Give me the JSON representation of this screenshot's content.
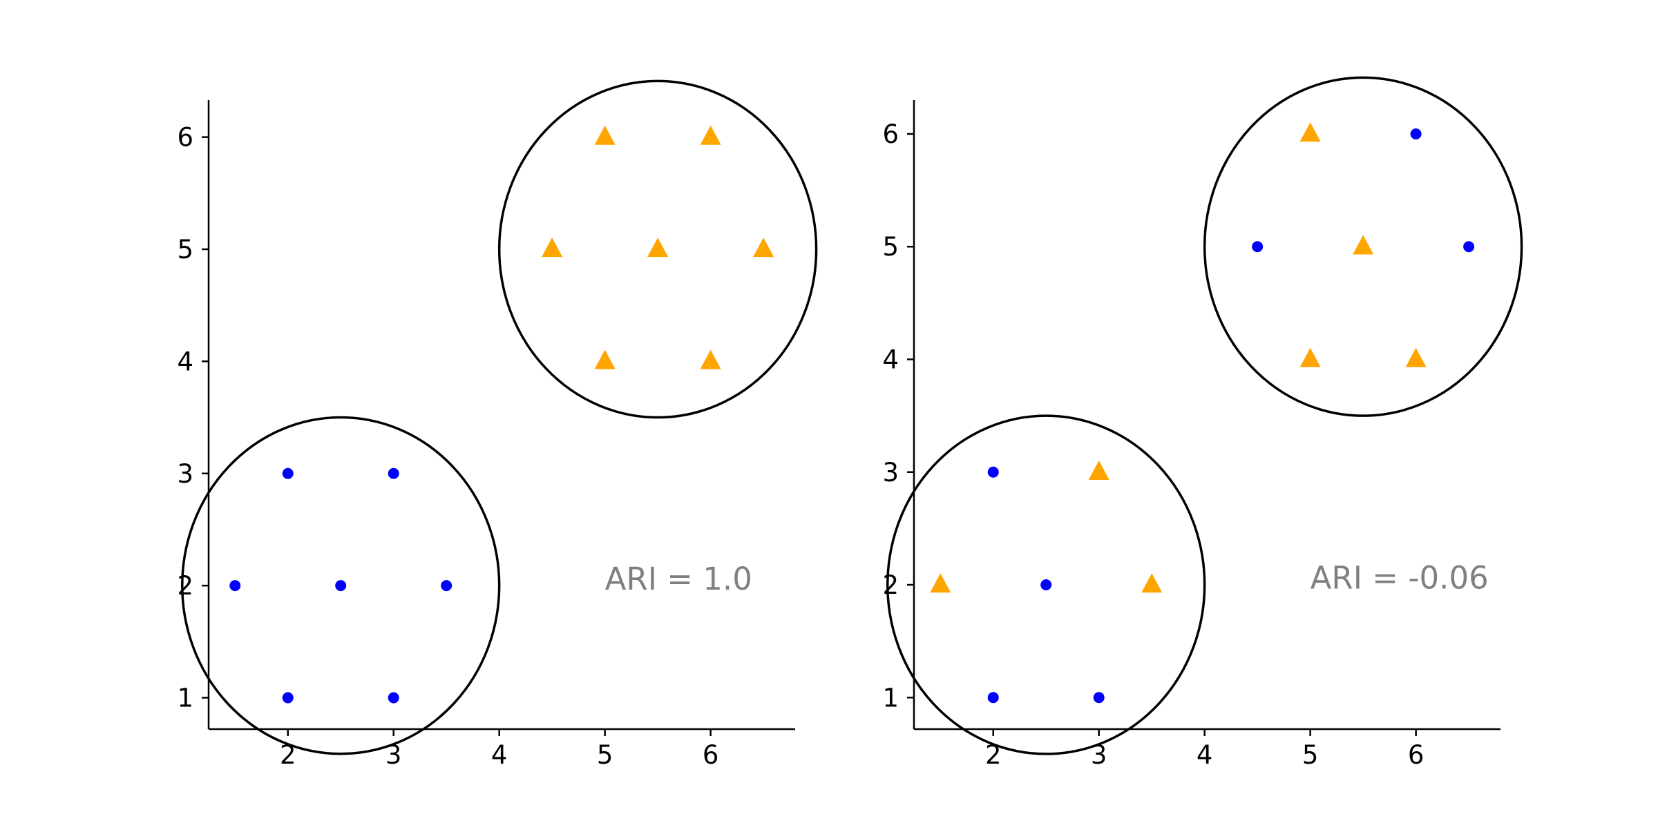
{
  "chart_data": [
    {
      "type": "scatter",
      "xlim": [
        1.25,
        6.8
      ],
      "ylim": [
        0.72,
        6.33
      ],
      "xticks": [
        2,
        3,
        4,
        5,
        6
      ],
      "yticks": [
        1,
        2,
        3,
        4,
        5,
        6
      ],
      "grid": false,
      "series": [
        {
          "marker": "circle",
          "color": "#0000ff",
          "points": [
            [
              2,
              3
            ],
            [
              3,
              3
            ],
            [
              1.5,
              2
            ],
            [
              2.5,
              2
            ],
            [
              3.5,
              2
            ],
            [
              2,
              1
            ],
            [
              3,
              1
            ]
          ]
        },
        {
          "marker": "triangle",
          "color": "#ffa500",
          "points": [
            [
              5,
              6
            ],
            [
              6,
              6
            ],
            [
              4.5,
              5
            ],
            [
              5.5,
              5
            ],
            [
              6.5,
              5
            ],
            [
              5,
              4
            ],
            [
              6,
              4
            ]
          ]
        }
      ],
      "ellipses": [
        {
          "center": [
            2.5,
            2
          ],
          "rx": 1.5,
          "ry": 1.5
        },
        {
          "center": [
            5.5,
            5
          ],
          "rx": 1.5,
          "ry": 1.5
        }
      ],
      "annotation": {
        "text": "ARI = 1.0",
        "x": 5.0,
        "y": 2.1
      }
    },
    {
      "type": "scatter",
      "xlim": [
        1.25,
        6.8
      ],
      "ylim": [
        0.72,
        6.3
      ],
      "xticks": [
        2,
        3,
        4,
        5,
        6
      ],
      "yticks": [
        1,
        2,
        3,
        4,
        5,
        6
      ],
      "grid": false,
      "series": [
        {
          "marker": "circle",
          "color": "#0000ff",
          "points": [
            [
              2,
              3
            ],
            [
              2.5,
              2
            ],
            [
              2,
              1
            ],
            [
              3,
              1
            ],
            [
              6,
              6
            ],
            [
              4.5,
              5
            ],
            [
              6.5,
              5
            ]
          ]
        },
        {
          "marker": "triangle",
          "color": "#ffa500",
          "points": [
            [
              3,
              3
            ],
            [
              1.5,
              2
            ],
            [
              3.5,
              2
            ],
            [
              5,
              6
            ],
            [
              5.5,
              5
            ],
            [
              5,
              4
            ],
            [
              6,
              4
            ]
          ]
        }
      ],
      "ellipses": [
        {
          "center": [
            2.5,
            2
          ],
          "rx": 1.5,
          "ry": 1.5
        },
        {
          "center": [
            5.5,
            5
          ],
          "rx": 1.5,
          "ry": 1.5
        }
      ],
      "annotation": {
        "text": "ARI = -0.06",
        "x": 5.0,
        "y": 2.1
      }
    }
  ]
}
